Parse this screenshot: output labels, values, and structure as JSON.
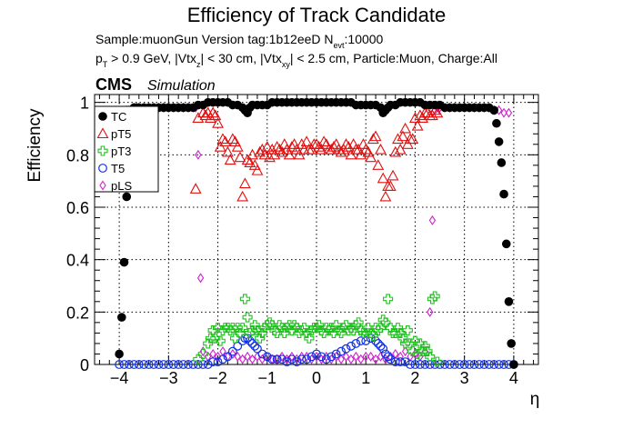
{
  "header": {
    "title": "Efficiency of Track Candidate",
    "info_line_1": {
      "prefix": "Sample:muonGun   Version tag:1b12eeD  N",
      "sub": "evt",
      "suffix": ":10000"
    },
    "info_line_2": {
      "p": "p",
      "p_sub": "T",
      "part1": " > 0.9 GeV, |Vtx",
      "z_sub": "z",
      "part2": "| < 30 cm, |Vtx",
      "xy_sub": "xy",
      "part3": "| < 2.5 cm, Particle:Muon, Charge:All"
    },
    "cms_label": "CMS",
    "simulation_label": "Simulation"
  },
  "chart_data": {
    "type": "scatter",
    "title": "Efficiency of Track Candidate",
    "xlabel": "η",
    "ylabel": "Efficiency",
    "xlim": [
      -4.5,
      4.5
    ],
    "ylim": [
      0,
      1.03
    ],
    "x_ticks": [
      "−4",
      "−3",
      "−2",
      "−1",
      "0",
      "1",
      "2",
      "3",
      "4"
    ],
    "x_tick_values": [
      -4,
      -3,
      -2,
      -1,
      0,
      1,
      2,
      3,
      4
    ],
    "y_ticks": [
      "0",
      "0.2",
      "0.4",
      "0.6",
      "0.8",
      "1"
    ],
    "y_tick_values": [
      0,
      0.2,
      0.4,
      0.6,
      0.8,
      1
    ],
    "grid": true,
    "legend_position": "top-left",
    "series": [
      {
        "name": "TC",
        "color": "#000000",
        "marker": "filled-circle",
        "x": [
          -4.0,
          -3.95,
          -3.9,
          -3.85,
          -3.8,
          -3.75,
          -3.7,
          -3.65,
          -3.6,
          -3.5,
          -3.4,
          -3.3,
          -3.2,
          -3.1,
          -3.0,
          -2.9,
          -2.8,
          -2.7,
          -2.6,
          -2.5,
          -2.4,
          -2.3,
          -2.2,
          -2.1,
          -2.0,
          -1.9,
          -1.8,
          -1.7,
          -1.6,
          -1.5,
          -1.45,
          -1.4,
          -1.35,
          -1.3,
          -1.2,
          -1.1,
          -1.0,
          -0.9,
          -0.8,
          -0.7,
          -0.6,
          -0.5,
          -0.4,
          -0.3,
          -0.2,
          -0.1,
          0.0,
          0.1,
          0.2,
          0.3,
          0.4,
          0.5,
          0.6,
          0.7,
          0.8,
          0.9,
          1.0,
          1.1,
          1.2,
          1.3,
          1.35,
          1.4,
          1.45,
          1.5,
          1.6,
          1.7,
          1.8,
          1.9,
          2.0,
          2.1,
          2.2,
          2.3,
          2.4,
          2.5,
          2.6,
          2.7,
          2.8,
          2.9,
          3.0,
          3.1,
          3.2,
          3.3,
          3.4,
          3.5,
          3.6,
          3.65,
          3.7,
          3.75,
          3.8,
          3.85,
          3.9,
          3.95,
          4.0
        ],
        "y": [
          0.04,
          0.18,
          0.39,
          0.64,
          0.9,
          0.97,
          0.98,
          0.98,
          0.98,
          0.98,
          0.98,
          0.98,
          0.98,
          0.98,
          0.98,
          0.98,
          0.98,
          0.98,
          0.98,
          0.98,
          0.99,
          0.99,
          1.0,
          1.0,
          1.0,
          1.0,
          1.0,
          0.99,
          0.99,
          0.98,
          0.97,
          0.96,
          0.98,
          0.99,
          0.99,
          0.99,
          0.99,
          1.0,
          1.0,
          1.0,
          1.0,
          1.0,
          1.0,
          1.0,
          1.0,
          1.0,
          1.0,
          1.0,
          1.0,
          1.0,
          1.0,
          1.0,
          1.0,
          1.0,
          0.99,
          0.99,
          0.99,
          0.99,
          0.99,
          0.98,
          0.96,
          0.97,
          0.98,
          0.99,
          0.99,
          1.0,
          1.0,
          1.0,
          1.0,
          1.0,
          0.99,
          0.99,
          0.99,
          0.99,
          0.98,
          0.98,
          0.98,
          0.98,
          0.98,
          0.98,
          0.98,
          0.98,
          0.98,
          0.98,
          0.97,
          0.92,
          0.85,
          0.77,
          0.65,
          0.46,
          0.24,
          0.08,
          0.0
        ]
      },
      {
        "name": "pT5",
        "color": "#e01010",
        "marker": "open-triangle",
        "x": [
          -2.45,
          -2.4,
          -2.3,
          -2.25,
          -2.2,
          -2.15,
          -2.1,
          -2.05,
          -2.0,
          -1.95,
          -1.9,
          -1.85,
          -1.8,
          -1.75,
          -1.7,
          -1.65,
          -1.6,
          -1.55,
          -1.5,
          -1.45,
          -1.4,
          -1.35,
          -1.3,
          -1.25,
          -1.2,
          -1.15,
          -1.1,
          -1.05,
          -1.0,
          -0.95,
          -0.9,
          -0.85,
          -0.8,
          -0.75,
          -0.7,
          -0.65,
          -0.6,
          -0.55,
          -0.5,
          -0.45,
          -0.4,
          -0.35,
          -0.3,
          -0.25,
          -0.2,
          -0.15,
          -0.1,
          -0.05,
          0.0,
          0.05,
          0.1,
          0.15,
          0.2,
          0.25,
          0.3,
          0.35,
          0.4,
          0.45,
          0.5,
          0.55,
          0.6,
          0.65,
          0.7,
          0.75,
          0.8,
          0.85,
          0.9,
          0.95,
          1.0,
          1.05,
          1.1,
          1.15,
          1.2,
          1.25,
          1.3,
          1.35,
          1.4,
          1.45,
          1.5,
          1.55,
          1.6,
          1.65,
          1.7,
          1.75,
          1.8,
          1.85,
          1.9,
          1.95,
          2.0,
          2.05,
          2.1,
          2.15,
          2.2,
          2.25,
          2.3,
          2.35,
          2.4,
          2.45
        ],
        "y": [
          0.67,
          0.94,
          0.96,
          0.95,
          0.96,
          0.94,
          0.96,
          0.95,
          0.92,
          0.83,
          0.86,
          0.85,
          0.81,
          0.78,
          0.86,
          0.85,
          0.83,
          0.79,
          0.64,
          0.69,
          0.78,
          0.77,
          0.8,
          0.76,
          0.74,
          0.81,
          0.82,
          0.8,
          0.83,
          0.79,
          0.82,
          0.8,
          0.83,
          0.82,
          0.81,
          0.84,
          0.82,
          0.8,
          0.83,
          0.84,
          0.82,
          0.8,
          0.84,
          0.82,
          0.85,
          0.82,
          0.82,
          0.84,
          0.84,
          0.83,
          0.82,
          0.85,
          0.84,
          0.82,
          0.82,
          0.83,
          0.84,
          0.82,
          0.81,
          0.82,
          0.84,
          0.83,
          0.8,
          0.84,
          0.82,
          0.82,
          0.8,
          0.84,
          0.82,
          0.81,
          0.79,
          0.86,
          0.87,
          0.76,
          0.82,
          0.71,
          0.64,
          0.68,
          0.68,
          0.72,
          0.81,
          0.86,
          0.82,
          0.87,
          0.9,
          0.84,
          0.86,
          0.86,
          0.94,
          0.91,
          0.95,
          0.94,
          0.96,
          0.96,
          0.95,
          0.95,
          0.97,
          0.96
        ]
      },
      {
        "name": "pT3",
        "color": "#20c020",
        "marker": "open-cross",
        "x": [
          -2.4,
          -2.3,
          -2.2,
          -2.15,
          -2.1,
          -2.05,
          -2.0,
          -1.95,
          -1.9,
          -1.85,
          -1.8,
          -1.75,
          -1.7,
          -1.65,
          -1.6,
          -1.55,
          -1.5,
          -1.45,
          -1.4,
          -1.35,
          -1.3,
          -1.25,
          -1.2,
          -1.15,
          -1.1,
          -1.05,
          -1.0,
          -0.95,
          -0.9,
          -0.85,
          -0.8,
          -0.75,
          -0.7,
          -0.65,
          -0.6,
          -0.55,
          -0.5,
          -0.45,
          -0.4,
          -0.35,
          -0.3,
          -0.25,
          -0.2,
          -0.15,
          -0.1,
          -0.05,
          0.0,
          0.05,
          0.1,
          0.15,
          0.2,
          0.25,
          0.3,
          0.35,
          0.4,
          0.45,
          0.5,
          0.55,
          0.6,
          0.65,
          0.7,
          0.75,
          0.8,
          0.85,
          0.9,
          0.95,
          1.0,
          1.05,
          1.1,
          1.15,
          1.2,
          1.25,
          1.3,
          1.35,
          1.4,
          1.45,
          1.5,
          1.55,
          1.6,
          1.65,
          1.7,
          1.75,
          1.8,
          1.85,
          1.9,
          1.95,
          2.0,
          2.05,
          2.1,
          2.15,
          2.2,
          2.25,
          2.3,
          2.35,
          2.4,
          2.45
        ],
        "y": [
          0.02,
          0.04,
          0.08,
          0.1,
          0.13,
          0.1,
          0.14,
          0.09,
          0.13,
          0.14,
          0.14,
          0.13,
          0.14,
          0.1,
          0.14,
          0.12,
          0.14,
          0.25,
          0.18,
          0.12,
          0.13,
          0.15,
          0.13,
          0.1,
          0.12,
          0.14,
          0.15,
          0.16,
          0.15,
          0.13,
          0.12,
          0.15,
          0.14,
          0.12,
          0.14,
          0.15,
          0.13,
          0.15,
          0.14,
          0.12,
          0.13,
          0.14,
          0.12,
          0.1,
          0.13,
          0.14,
          0.14,
          0.15,
          0.13,
          0.12,
          0.14,
          0.13,
          0.14,
          0.12,
          0.15,
          0.13,
          0.12,
          0.14,
          0.15,
          0.13,
          0.14,
          0.13,
          0.15,
          0.16,
          0.13,
          0.12,
          0.12,
          0.14,
          0.12,
          0.11,
          0.14,
          0.13,
          0.14,
          0.17,
          0.16,
          0.25,
          0.14,
          0.12,
          0.12,
          0.14,
          0.12,
          0.1,
          0.08,
          0.13,
          0.08,
          0.05,
          0.09,
          0.04,
          0.08,
          0.05,
          0.07,
          0.05,
          0.03,
          0.25,
          0.26,
          0.01
        ]
      },
      {
        "name": "T5",
        "color": "#1030e0",
        "marker": "open-circle",
        "x": [
          -4.0,
          -3.9,
          -3.8,
          -3.7,
          -3.6,
          -3.5,
          -3.4,
          -3.3,
          -3.2,
          -3.1,
          -3.0,
          -2.9,
          -2.8,
          -2.7,
          -2.6,
          -2.5,
          -2.4,
          -2.3,
          -2.2,
          -2.1,
          -2.0,
          -1.9,
          -1.8,
          -1.7,
          -1.6,
          -1.5,
          -1.45,
          -1.4,
          -1.35,
          -1.3,
          -1.25,
          -1.2,
          -1.1,
          -1.0,
          -0.9,
          -0.8,
          -0.7,
          -0.6,
          -0.5,
          -0.4,
          -0.3,
          -0.2,
          -0.1,
          0.0,
          0.1,
          0.2,
          0.3,
          0.4,
          0.5,
          0.6,
          0.7,
          0.8,
          0.9,
          1.0,
          1.1,
          1.2,
          1.25,
          1.3,
          1.35,
          1.4,
          1.45,
          1.5,
          1.6,
          1.7,
          1.8,
          1.9,
          2.0,
          2.1,
          2.2,
          2.3,
          2.4,
          2.5,
          2.6,
          2.7,
          2.8,
          2.9,
          3.0,
          3.1,
          3.2,
          3.3,
          3.4,
          3.5,
          3.6,
          3.7,
          3.8,
          3.9,
          4.0
        ],
        "y": [
          0.0,
          0.0,
          0.0,
          0.0,
          0.0,
          0.0,
          0.0,
          0.0,
          0.0,
          0.0,
          0.0,
          0.0,
          0.0,
          0.0,
          0.0,
          0.0,
          0.0,
          0.0,
          0.0,
          0.01,
          0.01,
          0.02,
          0.03,
          0.05,
          0.07,
          0.09,
          0.1,
          0.1,
          0.09,
          0.08,
          0.07,
          0.06,
          0.04,
          0.03,
          0.02,
          0.02,
          0.02,
          0.01,
          0.02,
          0.01,
          0.02,
          0.02,
          0.03,
          0.04,
          0.03,
          0.02,
          0.03,
          0.04,
          0.05,
          0.06,
          0.07,
          0.08,
          0.09,
          0.09,
          0.1,
          0.09,
          0.08,
          0.07,
          0.06,
          0.04,
          0.03,
          0.02,
          0.01,
          0.01,
          0.01,
          0.0,
          0.0,
          0.0,
          0.0,
          0.0,
          0.0,
          0.0,
          0.0,
          0.0,
          0.0,
          0.0,
          0.0,
          0.0,
          0.0,
          0.0,
          0.0,
          0.0,
          0.0,
          0.0,
          0.0,
          0.0,
          0.0
        ]
      },
      {
        "name": "pLS",
        "color": "#d020d0",
        "marker": "open-diamond",
        "x": [
          -3.9,
          -3.85,
          -3.8,
          -3.75,
          -3.7,
          -3.6,
          -3.5,
          -3.4,
          -3.3,
          -3.2,
          -3.1,
          -3.0,
          -2.9,
          -2.8,
          -2.7,
          -2.6,
          -2.5,
          -2.45,
          -2.4,
          -2.35,
          -2.3,
          -2.2,
          -2.1,
          -2.0,
          -1.9,
          -1.8,
          -1.7,
          -1.6,
          -1.5,
          -1.4,
          -1.3,
          -1.2,
          -1.1,
          -1.0,
          -0.9,
          -0.8,
          -0.7,
          -0.6,
          -0.5,
          -0.4,
          -0.3,
          -0.2,
          -0.1,
          0.0,
          0.1,
          0.2,
          0.3,
          0.4,
          0.5,
          0.6,
          0.7,
          0.8,
          0.9,
          1.0,
          1.1,
          1.2,
          1.3,
          1.4,
          1.5,
          1.6,
          1.7,
          1.8,
          1.9,
          2.0,
          2.1,
          2.2,
          2.3,
          2.35,
          2.4,
          2.45,
          2.5,
          2.6,
          2.7,
          2.8,
          2.9,
          3.0,
          3.1,
          3.2,
          3.3,
          3.4,
          3.5,
          3.6,
          3.7,
          3.8,
          3.9
        ],
        "y": [
          0.96,
          0.97,
          0.97,
          0.97,
          0.98,
          0.98,
          0.98,
          0.98,
          0.98,
          0.98,
          0.98,
          0.98,
          0.98,
          0.98,
          0.98,
          0.98,
          0.98,
          0.98,
          0.8,
          0.33,
          0.05,
          0.03,
          0.04,
          0.03,
          0.05,
          0.03,
          0.04,
          0.03,
          0.02,
          0.03,
          0.02,
          0.03,
          0.02,
          0.03,
          0.02,
          0.02,
          0.03,
          0.02,
          0.03,
          0.02,
          0.03,
          0.03,
          0.02,
          0.03,
          0.02,
          0.03,
          0.02,
          0.03,
          0.02,
          0.03,
          0.02,
          0.03,
          0.02,
          0.03,
          0.03,
          0.02,
          0.03,
          0.02,
          0.03,
          0.04,
          0.03,
          0.05,
          0.03,
          0.04,
          0.03,
          0.05,
          0.2,
          0.55,
          0.97,
          0.98,
          0.98,
          0.98,
          0.98,
          0.98,
          0.98,
          0.98,
          0.98,
          0.98,
          0.98,
          0.98,
          0.98,
          0.97,
          0.97,
          0.96,
          0.96
        ]
      }
    ]
  }
}
